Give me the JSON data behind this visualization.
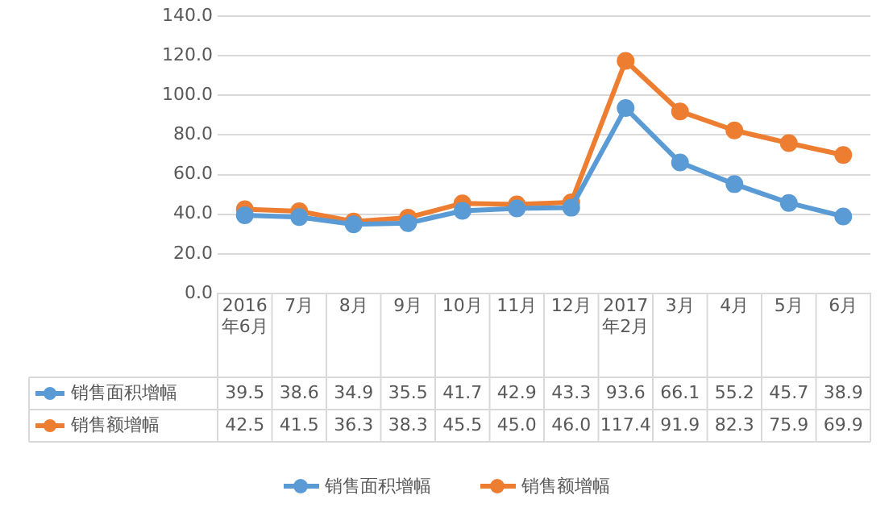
{
  "chart_data": {
    "type": "line",
    "categories": [
      "2016年6月",
      "7月",
      "8月",
      "9月",
      "10月",
      "11月",
      "12月",
      "2017年2月",
      "3月",
      "4月",
      "5月",
      "6月"
    ],
    "series": [
      {
        "name": "销售面积增幅",
        "color": "#5b9bd5",
        "values": [
          39.5,
          38.6,
          34.9,
          35.5,
          41.7,
          42.9,
          43.3,
          93.6,
          66.1,
          55.2,
          45.7,
          38.9
        ],
        "value_labels": [
          "39.5",
          "38.6",
          "34.9",
          "35.5",
          "41.7",
          "42.9",
          "43.3",
          "93.6",
          "66.1",
          "55.2",
          "45.7",
          "38.9"
        ]
      },
      {
        "name": "销售额增幅",
        "color": "#ed7d31",
        "values": [
          42.5,
          41.5,
          36.3,
          38.3,
          45.5,
          45.0,
          46.0,
          117.4,
          91.9,
          82.3,
          75.9,
          69.9
        ],
        "value_labels": [
          "42.5",
          "41.5",
          "36.3",
          "38.3",
          "45.5",
          "45.0",
          "46.0",
          "117.4",
          "91.9",
          "82.3",
          "75.9",
          "69.9"
        ]
      }
    ],
    "ylim": [
      0,
      140
    ],
    "yticks": [
      {
        "value": 0,
        "label": "0.0"
      },
      {
        "value": 20,
        "label": "20.0"
      },
      {
        "value": 40,
        "label": "40.0"
      },
      {
        "value": 60,
        "label": "60.0"
      },
      {
        "value": 80,
        "label": "80.0"
      },
      {
        "value": 100,
        "label": "100.0"
      },
      {
        "value": 120,
        "label": "120.0"
      },
      {
        "value": 140,
        "label": "140.0"
      }
    ],
    "grid": "y",
    "legend": "bottom",
    "marker": "circle",
    "line_style": "solid"
  }
}
